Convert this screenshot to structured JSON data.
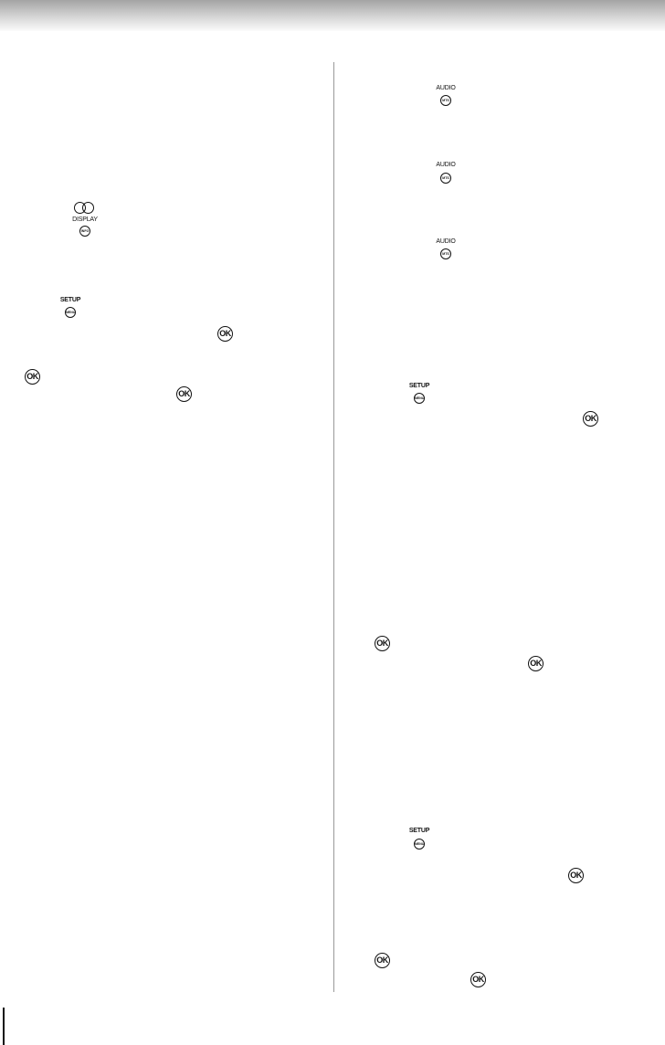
{
  "icons": {
    "display_label": "DISPLAY",
    "info_label": "INFO",
    "setup_label": "SETUP",
    "menu_label": "MENU",
    "audio_label": "AUDIO",
    "mts_label": "MTS",
    "ok_label": "OK"
  }
}
